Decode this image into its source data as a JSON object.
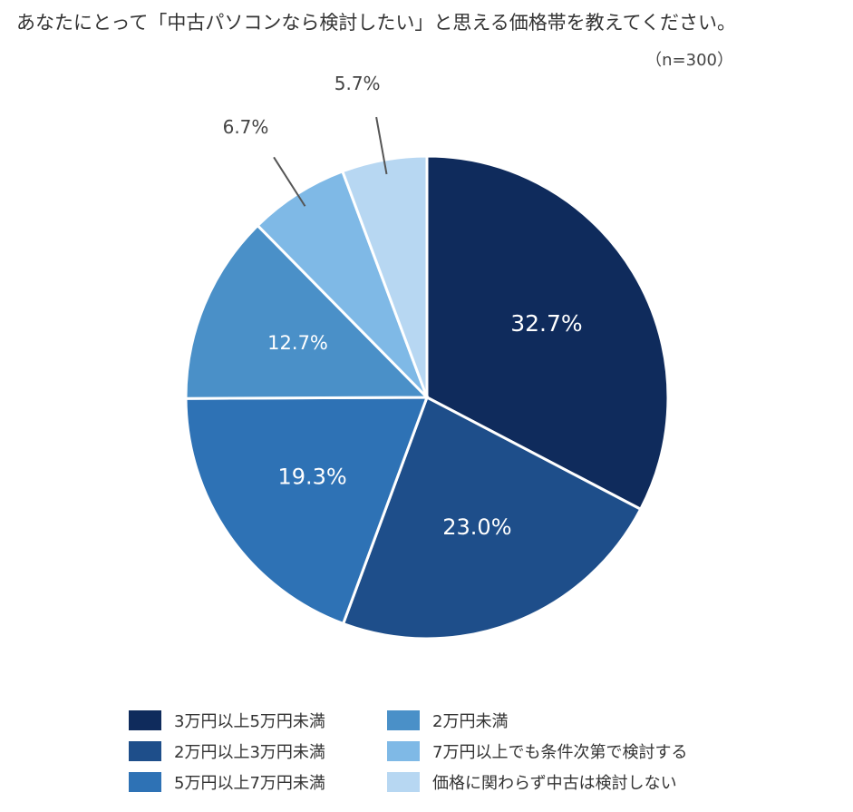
{
  "title": "あなたにとって「中古パソコンなら検討したい」と思える価格帯を教えてください。",
  "sample_size": "（n=300）",
  "chart_data": {
    "type": "pie",
    "title": "あなたにとって「中古パソコンなら検討したい」と思える価格帯を教えてください。",
    "slices": [
      {
        "label": "3万円以上5万円未満",
        "value": 32.7,
        "display": "32.7%",
        "color": "#0f2b5c"
      },
      {
        "label": "2万円以上3万円未満",
        "value": 23.0,
        "display": "23.0%",
        "color": "#1e4e8a"
      },
      {
        "label": "5万円以上7万円未満",
        "value": 19.3,
        "display": "19.3%",
        "color": "#2e72b5"
      },
      {
        "label": "2万円未満",
        "value": 12.7,
        "display": "12.7%",
        "color": "#4a90c8"
      },
      {
        "label": "7万円以上でも条件次第で検討する",
        "value": 6.7,
        "display": "6.7%",
        "color": "#7fb9e6"
      },
      {
        "label": "価格に関わらず中古は検討しない",
        "value": 5.7,
        "display": "5.7%",
        "color": "#b7d7f2"
      }
    ],
    "legend_position": "bottom"
  }
}
